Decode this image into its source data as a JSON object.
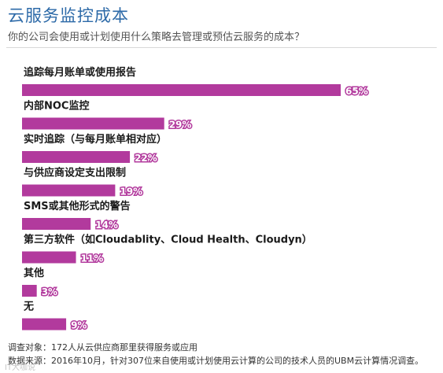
{
  "header": {
    "title": "云服务监控成本",
    "subtitle": "你的公司会使用或计划使用什么策略去管理或预估云服务的成本？"
  },
  "colors": {
    "bar": "#b23a9d",
    "title": "#2d6aa8"
  },
  "chart_data": {
    "type": "bar",
    "orientation": "horizontal",
    "title": "云服务监控成本",
    "subtitle": "你的公司会使用或计划使用什么策略去管理或预估云服务的成本？",
    "categories": [
      "追踪每月账单或使用报告",
      "内部NOC监控",
      "实时追踪（与每月账单相对应）",
      "与供应商设定支出限制",
      "SMS或其他形式的警告",
      "第三方软件（如Cloudablity、Cloud Health、Cloudyn）",
      "其他",
      "无"
    ],
    "values": [
      65,
      29,
      22,
      19,
      14,
      11,
      3,
      9
    ],
    "value_labels": [
      "65%",
      "29%",
      "22%",
      "19%",
      "14%",
      "11%",
      "3%",
      "9%"
    ],
    "unit": "%",
    "xlim": [
      0,
      65
    ],
    "grid": false,
    "legend": "none"
  },
  "footer": {
    "note1": "调查对象：172人从云供应商那里获得服务或应用",
    "note2": "数据来源：2016年10月，针对307位来自使用或计划使用云计算的公司的技术人员的UBM云计算情况调查。",
    "watermark": "IT大咖说"
  }
}
